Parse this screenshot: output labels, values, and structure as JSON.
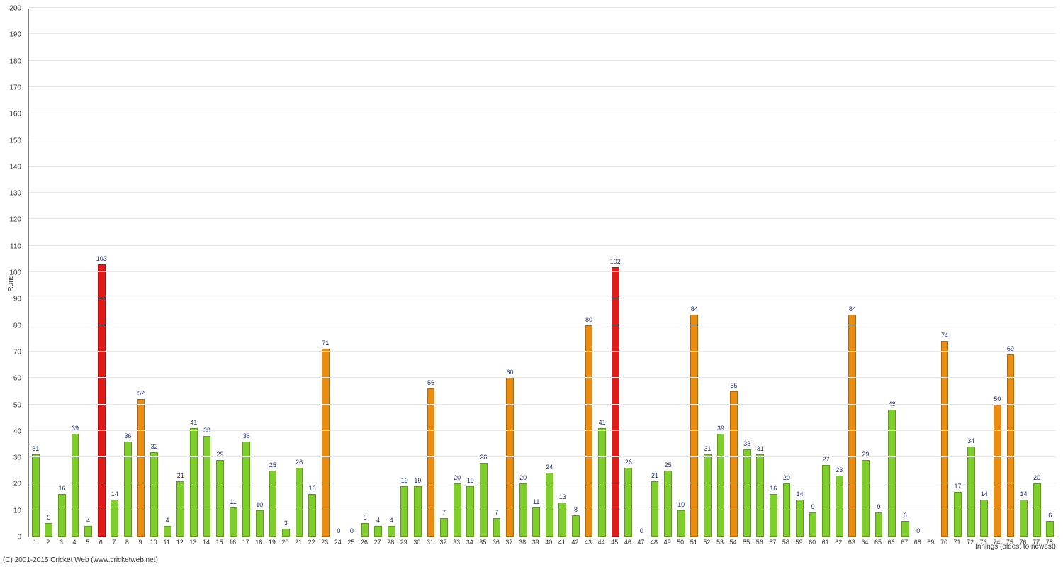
{
  "chart": {
    "type": "bar",
    "ylabel": "Runs",
    "xlabel": "Innings (oldest to newest)",
    "copyright": "(C) 2001-2015 Cricket Web (www.cricketweb.net)",
    "ylim": [
      0,
      200
    ],
    "ytick_step": 10,
    "label_fontsize": 10,
    "value_label_fontsize": 9,
    "value_label_color": "#203070",
    "background_color": "#ffffff",
    "grid_color": "#e8e8e8",
    "axis_color": "#808080",
    "colors": {
      "low": "#7fce2c",
      "mid": "#e98c12",
      "high": "#e21a1a"
    },
    "thresholds": {
      "mid_min": 50,
      "high_min": 100
    },
    "bar_width_ratio": 0.58,
    "values": [
      31,
      5,
      16,
      39,
      4,
      103,
      14,
      36,
      52,
      32,
      4,
      21,
      41,
      38,
      29,
      11,
      36,
      10,
      25,
      3,
      26,
      16,
      71,
      0,
      0,
      5,
      4,
      4,
      19,
      19,
      56,
      7,
      20,
      19,
      28,
      7,
      60,
      20,
      11,
      24,
      13,
      8,
      80,
      41,
      102,
      26,
      0,
      21,
      25,
      10,
      84,
      31,
      39,
      55,
      33,
      31,
      16,
      20,
      14,
      9,
      27,
      23,
      84,
      29,
      9,
      48,
      6,
      0,
      null,
      74,
      17,
      34,
      14,
      50,
      69,
      14,
      20,
      6
    ]
  }
}
